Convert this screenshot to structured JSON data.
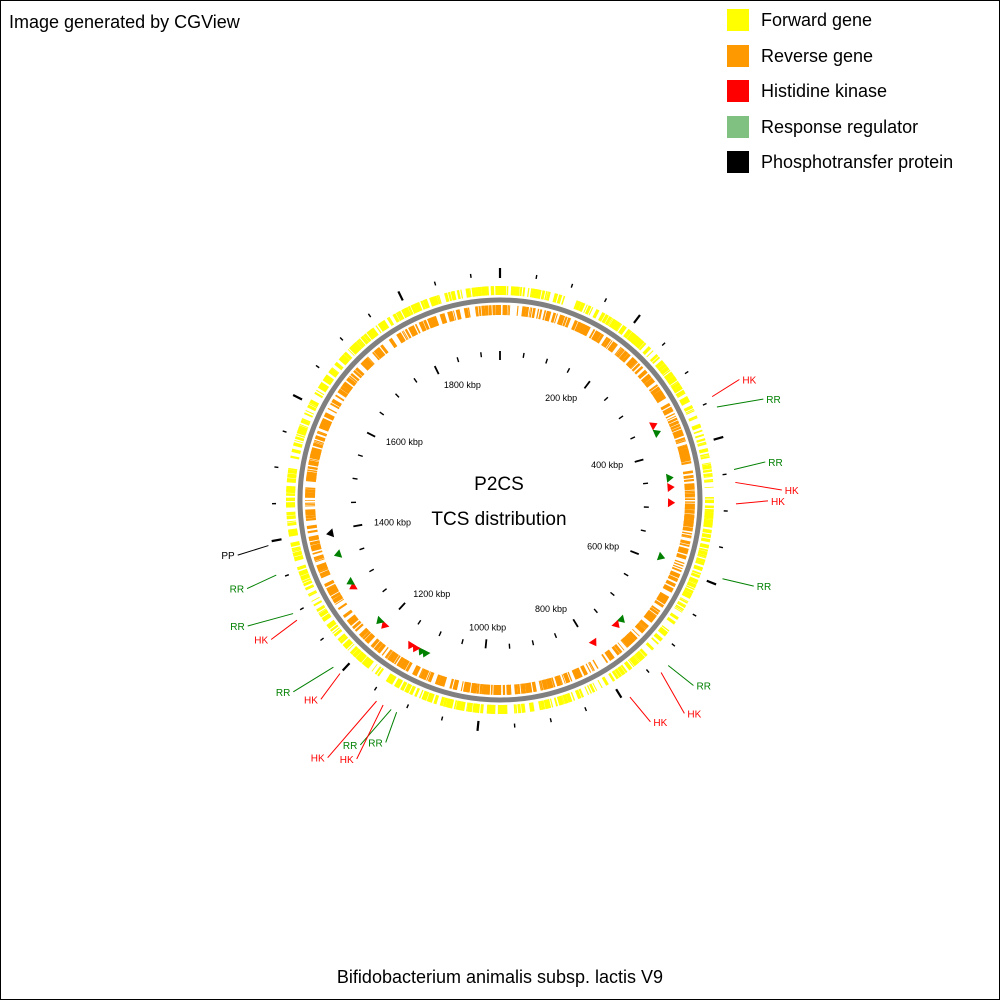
{
  "credit": "Image generated by CGView",
  "legend": {
    "items": [
      {
        "label": "Forward gene",
        "color": "#ffff00"
      },
      {
        "label": "Reverse gene",
        "color": "#ff9900"
      },
      {
        "label": "Histidine kinase",
        "color": "#ff0000"
      },
      {
        "label": "Response regulator",
        "color": "#80c080"
      },
      {
        "label": "Phosphotransfer protein",
        "color": "#000000"
      }
    ]
  },
  "map": {
    "title": "P2CS",
    "subtitle": "TCS distribution",
    "organism": "Bifidobacterium animalis subsp. lactis V9",
    "genome_length_kbp": 1940,
    "ticks": [
      "200 kbp",
      "400 kbp",
      "600 kbp",
      "800 kbp",
      "1000 kbp",
      "1200 kbp",
      "1400 kbp",
      "1600 kbp",
      "1800 kbp"
    ],
    "tick_values_kbp": [
      200,
      400,
      600,
      800,
      1000,
      1200,
      1400,
      1600,
      1800
    ],
    "colors": {
      "forward": "#ffff00",
      "reverse": "#ff9900",
      "hk": "#ff0000",
      "rr": "#008000",
      "pp": "#000000",
      "backbone": "#808080"
    },
    "features": [
      {
        "label": "HK",
        "type": "hk",
        "pos_kbp": 345
      },
      {
        "label": "RR",
        "type": "rr",
        "pos_kbp": 360
      },
      {
        "label": "RR",
        "type": "rr",
        "pos_kbp": 445
      },
      {
        "label": "HK",
        "type": "hk",
        "pos_kbp": 462
      },
      {
        "label": "HK",
        "type": "hk",
        "pos_kbp": 490
      },
      {
        "label": "RR",
        "type": "rr",
        "pos_kbp": 590
      },
      {
        "label": "RR",
        "type": "rr",
        "pos_kbp": 725
      },
      {
        "label": "HK",
        "type": "hk",
        "pos_kbp": 738
      },
      {
        "label": "HK",
        "type": "hk",
        "pos_kbp": 790
      },
      {
        "label": "RR",
        "type": "rr",
        "pos_kbp": 1110
      },
      {
        "label": "RR",
        "type": "rr",
        "pos_kbp": 1118
      },
      {
        "label": "HK",
        "type": "hk",
        "pos_kbp": 1130
      },
      {
        "label": "HK",
        "type": "hk",
        "pos_kbp": 1140
      },
      {
        "label": "HK",
        "type": "hk",
        "pos_kbp": 1200
      },
      {
        "label": "RR",
        "type": "rr",
        "pos_kbp": 1212
      },
      {
        "label": "HK",
        "type": "hk",
        "pos_kbp": 1290
      },
      {
        "label": "RR",
        "type": "rr",
        "pos_kbp": 1300
      },
      {
        "label": "RR",
        "type": "rr",
        "pos_kbp": 1355
      },
      {
        "label": "PP",
        "type": "pp",
        "pos_kbp": 1395
      }
    ]
  }
}
